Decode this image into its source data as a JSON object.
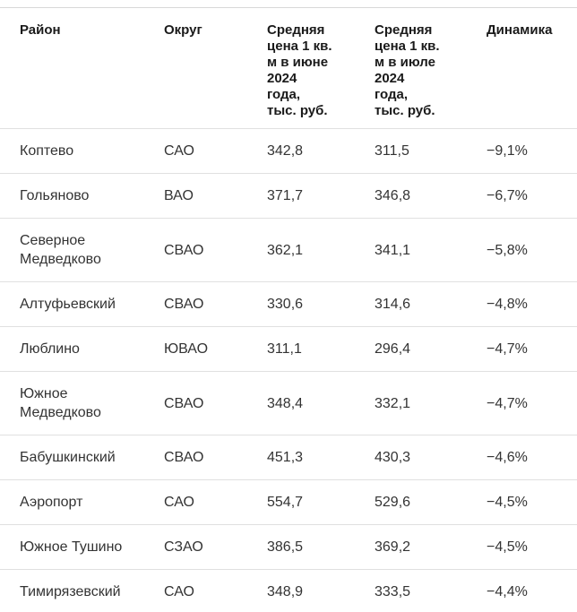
{
  "colors": {
    "background": "#ffffff",
    "header_text": "#1a1a1a",
    "body_text": "#333333",
    "divider": "#e0e0e0",
    "top_border": "#d8d8d8"
  },
  "chart_data": {
    "type": "table",
    "columns": [
      "Район",
      "Округ",
      "Средняя цена 1 кв. м в июне 2024 года, тыс. руб.",
      "Средняя цена 1 кв. м в июле 2024 года, тыс. руб.",
      "Динамика"
    ],
    "header_display": [
      "Район",
      "Округ",
      "Средняя\nцена 1 кв.\nм в июне\n2024\nгода,\nтыс. руб.",
      "Средняя\nцена 1 кв.\nм в июле\n2024\nгода,\nтыс. руб.",
      "Динамика"
    ],
    "rows": [
      {
        "district": "Коптево",
        "okrug": "САО",
        "price_june_k_rub": "342,8",
        "price_july_k_rub": "311,5",
        "dynamics": "−9,1%"
      },
      {
        "district": "Гольяново",
        "okrug": "ВАО",
        "price_june_k_rub": "371,7",
        "price_july_k_rub": "346,8",
        "dynamics": "−6,7%"
      },
      {
        "district": "Северное Медведково",
        "okrug": "СВАО",
        "price_june_k_rub": "362,1",
        "price_july_k_rub": "341,1",
        "dynamics": "−5,8%"
      },
      {
        "district": "Алтуфьевский",
        "okrug": "СВАО",
        "price_june_k_rub": "330,6",
        "price_july_k_rub": "314,6",
        "dynamics": "−4,8%"
      },
      {
        "district": "Люблино",
        "okrug": "ЮВАО",
        "price_june_k_rub": "311,1",
        "price_july_k_rub": "296,4",
        "dynamics": "−4,7%"
      },
      {
        "district": "Южное Медведково",
        "okrug": "СВАО",
        "price_june_k_rub": "348,4",
        "price_july_k_rub": "332,1",
        "dynamics": "−4,7%"
      },
      {
        "district": "Бабушкинский",
        "okrug": "СВАО",
        "price_june_k_rub": "451,3",
        "price_july_k_rub": "430,3",
        "dynamics": "−4,6%"
      },
      {
        "district": "Аэропорт",
        "okrug": "САО",
        "price_june_k_rub": "554,7",
        "price_july_k_rub": "529,6",
        "dynamics": "−4,5%"
      },
      {
        "district": "Южное Тушино",
        "okrug": "СЗАО",
        "price_june_k_rub": "386,5",
        "price_july_k_rub": "369,2",
        "dynamics": "−4,5%"
      },
      {
        "district": "Тимирязевский",
        "okrug": "САО",
        "price_june_k_rub": "348,9",
        "price_july_k_rub": "333,5",
        "dynamics": "−4,4%"
      }
    ]
  }
}
